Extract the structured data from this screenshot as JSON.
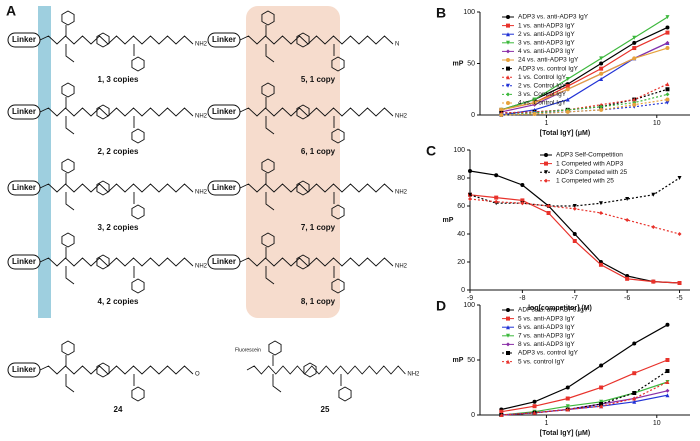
{
  "panel_a": {
    "label": "A",
    "compounds": [
      {
        "linker": "Linker",
        "terminal": "NH2",
        "caption": "1, 3 copies"
      },
      {
        "linker": "Linker",
        "terminal": "NH2",
        "caption": "2, 2 copies"
      },
      {
        "linker": "Linker",
        "terminal": "NH2",
        "caption": "3, 2 copies"
      },
      {
        "linker": "Linker",
        "terminal": "NH2",
        "caption": "4, 2 copies"
      },
      {
        "linker": "Linker",
        "terminal": "N",
        "caption": "5, 1 copy"
      },
      {
        "linker": "Linker",
        "terminal": "NH2",
        "caption": "6, 1 copy"
      },
      {
        "linker": "Linker",
        "terminal": "NH2",
        "caption": "7, 1 copy"
      },
      {
        "linker": "Linker",
        "terminal": "NH2",
        "caption": "8, 1 copy"
      },
      {
        "linker": "Linker",
        "terminal": "O",
        "caption": "24"
      },
      {
        "linker": "Fluorescein",
        "terminal": "NH2",
        "caption": "25"
      }
    ]
  },
  "chart_data": [
    {
      "type": "line",
      "label": "B",
      "xlabel": "[Total IgY] (μM)",
      "ylabel": "mP",
      "xscale": "log",
      "xlim": [
        0.25,
        20
      ],
      "xticks": [
        1,
        10
      ],
      "ylim": [
        0,
        100
      ],
      "yticks": [
        0,
        50,
        100
      ],
      "legend": "upper left",
      "x": [
        0.39,
        0.78,
        1.56,
        3.13,
        6.25,
        12.5
      ],
      "series": [
        {
          "name": "ADP3 vs. anti-ADP3 IgY",
          "color": "#000000",
          "marker": "circle",
          "dashed": false,
          "values": [
            5,
            15,
            30,
            50,
            70,
            85
          ]
        },
        {
          "name": "1 vs. anti-ADP3 IgY",
          "color": "#e8322b",
          "marker": "square",
          "dashed": false,
          "values": [
            5,
            12,
            28,
            45,
            65,
            80
          ]
        },
        {
          "name": "2 vs. anti-ADP3 IgY",
          "color": "#2233d6",
          "marker": "triangle",
          "dashed": false,
          "values": [
            0,
            5,
            15,
            35,
            55,
            70
          ]
        },
        {
          "name": "3 vs. anti-ADP3 IgY",
          "color": "#3db83d",
          "marker": "triangle-down",
          "dashed": false,
          "values": [
            5,
            15,
            35,
            55,
            75,
            95
          ]
        },
        {
          "name": "4 vs. anti-ADP3 IgY",
          "color": "#8a2fa8",
          "marker": "diamond",
          "dashed": false,
          "values": [
            3,
            10,
            25,
            40,
            55,
            70
          ]
        },
        {
          "name": "24 vs. anti-ADP3 IgY",
          "color": "#e6a23c",
          "marker": "circle",
          "dashed": false,
          "values": [
            5,
            12,
            25,
            40,
            55,
            65
          ]
        },
        {
          "name": "ADP3 vs. control IgY",
          "color": "#000000",
          "marker": "square",
          "dashed": true,
          "values": [
            2,
            3,
            5,
            8,
            15,
            25
          ]
        },
        {
          "name": "1 vs. Control IgY",
          "color": "#e8322b",
          "marker": "triangle",
          "dashed": true,
          "values": [
            2,
            3,
            5,
            10,
            15,
            30
          ]
        },
        {
          "name": "2 vs. Control IgY",
          "color": "#2233d6",
          "marker": "triangle-down",
          "dashed": true,
          "values": [
            0,
            2,
            3,
            5,
            8,
            12
          ]
        },
        {
          "name": "3 vs. Control IgY",
          "color": "#3db83d",
          "marker": "diamond",
          "dashed": true,
          "values": [
            0,
            2,
            5,
            8,
            12,
            20
          ]
        },
        {
          "name": "4 vs. Control IgY",
          "color": "#e6a23c",
          "marker": "circle",
          "dashed": true,
          "values": [
            0,
            1,
            3,
            5,
            10,
            15
          ]
        }
      ]
    },
    {
      "type": "line",
      "label": "C",
      "xlabel": "log[competitor] (M)",
      "ylabel": "mP",
      "xscale": "linear",
      "xlim": [
        -9,
        -4.8
      ],
      "xticks": [
        -9,
        -8,
        -7,
        -6,
        -5
      ],
      "ylim": [
        0,
        100
      ],
      "yticks": [
        0,
        20,
        40,
        60,
        80,
        100
      ],
      "legend": "upper right",
      "x": [
        -9,
        -8.5,
        -8,
        -7.5,
        -7,
        -6.5,
        -6,
        -5.5,
        -5
      ],
      "series": [
        {
          "name": "ADP3 Self-Competition",
          "color": "#000000",
          "marker": "circle",
          "dashed": false,
          "values": [
            85,
            82,
            75,
            60,
            40,
            20,
            10,
            6,
            5
          ]
        },
        {
          "name": "1 Competed with ADP3",
          "color": "#e8322b",
          "marker": "square",
          "dashed": false,
          "values": [
            68,
            66,
            64,
            55,
            35,
            18,
            8,
            6,
            5
          ]
        },
        {
          "name": "ADP3 Competed with 25",
          "color": "#000000",
          "marker": "triangle-down",
          "dashed": true,
          "values": [
            68,
            62,
            62,
            60,
            60,
            62,
            65,
            68,
            80
          ]
        },
        {
          "name": "1 Competed with 25",
          "color": "#e8322b",
          "marker": "diamond",
          "dashed": true,
          "values": [
            65,
            63,
            62,
            60,
            58,
            55,
            50,
            45,
            40
          ]
        }
      ]
    },
    {
      "type": "line",
      "label": "D",
      "xlabel": "[Total IgY] (μM)",
      "ylabel": "mP",
      "xscale": "log",
      "xlim": [
        0.25,
        20
      ],
      "xticks": [
        1,
        10
      ],
      "ylim": [
        0,
        100
      ],
      "yticks": [
        0,
        50,
        100
      ],
      "legend": "upper left",
      "x": [
        0.39,
        0.78,
        1.56,
        3.13,
        6.25,
        12.5
      ],
      "series": [
        {
          "name": "ADP3 vs. anti-ADP3 IgY",
          "color": "#000000",
          "marker": "circle",
          "dashed": false,
          "values": [
            5,
            12,
            25,
            45,
            65,
            82
          ]
        },
        {
          "name": "5 vs. anti-ADP3 IgY",
          "color": "#e8322b",
          "marker": "square",
          "dashed": false,
          "values": [
            3,
            8,
            15,
            25,
            38,
            50
          ]
        },
        {
          "name": "6 vs. anti-ADP3 IgY",
          "color": "#2233d6",
          "marker": "triangle",
          "dashed": false,
          "values": [
            0,
            2,
            5,
            8,
            12,
            18
          ]
        },
        {
          "name": "7 vs. anti-ADP3 IgY",
          "color": "#3db83d",
          "marker": "triangle-down",
          "dashed": false,
          "values": [
            0,
            3,
            8,
            12,
            20,
            30
          ]
        },
        {
          "name": "8 vs. anti-ADP3 IgY",
          "color": "#8a2fa8",
          "marker": "diamond",
          "dashed": false,
          "values": [
            0,
            2,
            5,
            10,
            15,
            22
          ]
        },
        {
          "name": "ADP3 vs. control IgY",
          "color": "#000000",
          "marker": "square",
          "dashed": true,
          "values": [
            0,
            2,
            5,
            10,
            20,
            40
          ]
        },
        {
          "name": "5 vs. control IgY",
          "color": "#e8322b",
          "marker": "triangle",
          "dashed": true,
          "values": [
            0,
            2,
            5,
            8,
            15,
            30
          ]
        }
      ]
    }
  ]
}
